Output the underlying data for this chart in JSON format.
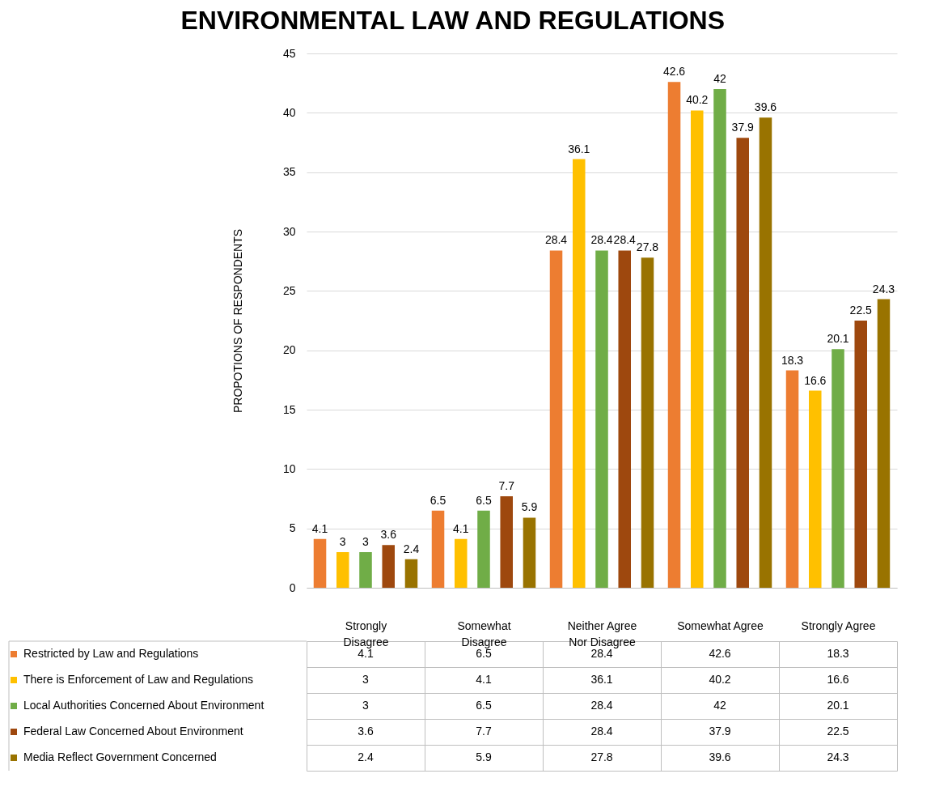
{
  "chart_data": {
    "type": "bar",
    "title": "ENVIRONMENTAL LAW AND REGULATIONS",
    "ylabel": "PROPOTIONS OF RESPONDENTS",
    "categories": [
      "Strongly Disagree",
      "Somewhat Disagree",
      "Neither Agree Nor Disagree",
      "Somewhat Agree",
      "Strongly Agree"
    ],
    "series": [
      {
        "name": "Restricted by Law and Regulations",
        "color": "#ed7d31",
        "values": [
          4.1,
          6.5,
          28.4,
          42.6,
          18.3
        ]
      },
      {
        "name": "There is Enforcement of Law and Regulations",
        "color": "#ffc000",
        "values": [
          3,
          4.1,
          36.1,
          40.2,
          16.6
        ]
      },
      {
        "name": "Local Authorities Concerned About Environment",
        "color": "#70ad47",
        "values": [
          3,
          6.5,
          28.4,
          42,
          20.1
        ]
      },
      {
        "name": "Federal Law Concerned About Environment",
        "color": "#9e480e",
        "values": [
          3.6,
          7.7,
          28.4,
          37.9,
          22.5
        ]
      },
      {
        "name": "Media Reflect Government Concerned",
        "color": "#997300",
        "values": [
          2.4,
          5.9,
          27.8,
          39.6,
          24.3
        ]
      }
    ],
    "annotations": [
      "4.1",
      "6.5",
      "28.4",
      "42.6",
      "18.3",
      "3",
      "4.1",
      "36.1",
      "40.2",
      "16.6",
      "3",
      "6.5",
      "28.4",
      "42",
      "20.1",
      "3.6",
      "7.7",
      "28.4",
      "37.9",
      "22.5",
      "2.4",
      "5.9",
      "27.8",
      "39.6",
      "24.3"
    ],
    "ylim": [
      0,
      45
    ],
    "yticks": [
      0,
      5,
      10,
      15,
      20,
      25,
      30,
      35,
      40,
      45
    ],
    "grid": "y",
    "legend": "bottom",
    "data_labels": true
  }
}
